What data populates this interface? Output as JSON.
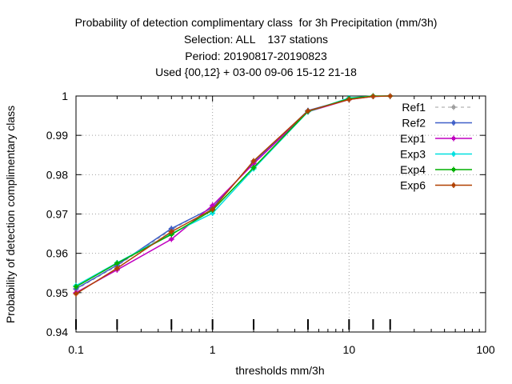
{
  "chart_data": {
    "type": "line",
    "title_lines": [
      "Probability of detection complimentary class  for 3h Precipitation (mm/3h)",
      "Selection: ALL    137 stations",
      "Period: 20190817-20190823",
      "Used {00,12} + 03-00 09-06 15-12 21-18"
    ],
    "xlabel": "thresholds mm/3h",
    "ylabel": "Probability of detection complimentary class",
    "x_scale": "log",
    "xlim": [
      0.1,
      100
    ],
    "ylim": [
      0.94,
      1.0
    ],
    "x_ticks": [
      0.1,
      1,
      10,
      100
    ],
    "x_tick_labels": [
      "0.1",
      "1",
      "10",
      "100"
    ],
    "y_ticks": [
      0.94,
      0.95,
      0.96,
      0.97,
      0.98,
      0.99,
      1.0
    ],
    "y_tick_labels": [
      "0.94",
      "0.95",
      "0.96",
      "0.97",
      "0.98",
      "0.99",
      "1"
    ],
    "grid": true,
    "legend_position": "top-right",
    "threshold_markers": [
      0.1,
      0.2,
      0.5,
      1,
      2,
      5,
      10,
      15,
      20
    ],
    "x": [
      0.1,
      0.2,
      0.5,
      1,
      2,
      5,
      10,
      15,
      20
    ],
    "series": [
      {
        "name": "Ref1",
        "color": "#a0a0a0",
        "dashed": true,
        "values": [
          0.9508,
          0.9568,
          0.966,
          0.9718,
          0.983,
          0.9962,
          0.9992,
          0.9999,
          1.0
        ]
      },
      {
        "name": "Ref2",
        "color": "#4060c8",
        "dashed": false,
        "values": [
          0.951,
          0.957,
          0.9663,
          0.9716,
          0.9832,
          0.9963,
          0.9992,
          0.9999,
          1.0
        ]
      },
      {
        "name": "Exp1",
        "color": "#c000c0",
        "dashed": false,
        "values": [
          0.95,
          0.9558,
          0.9636,
          0.9722,
          0.9828,
          0.996,
          0.9991,
          0.9999,
          1.0
        ]
      },
      {
        "name": "Exp3",
        "color": "#00e0e0",
        "dashed": false,
        "values": [
          0.9518,
          0.9576,
          0.965,
          0.9702,
          0.9815,
          0.996,
          0.9995,
          1.0,
          1.0
        ]
      },
      {
        "name": "Exp4",
        "color": "#00b000",
        "dashed": false,
        "values": [
          0.9515,
          0.9575,
          0.9648,
          0.971,
          0.9818,
          0.9961,
          0.9993,
          1.0,
          1.0
        ]
      },
      {
        "name": "Exp6",
        "color": "#b04000",
        "dashed": false,
        "values": [
          0.9497,
          0.9562,
          0.9655,
          0.9712,
          0.9835,
          0.9962,
          0.9991,
          0.9999,
          1.0
        ]
      }
    ]
  }
}
